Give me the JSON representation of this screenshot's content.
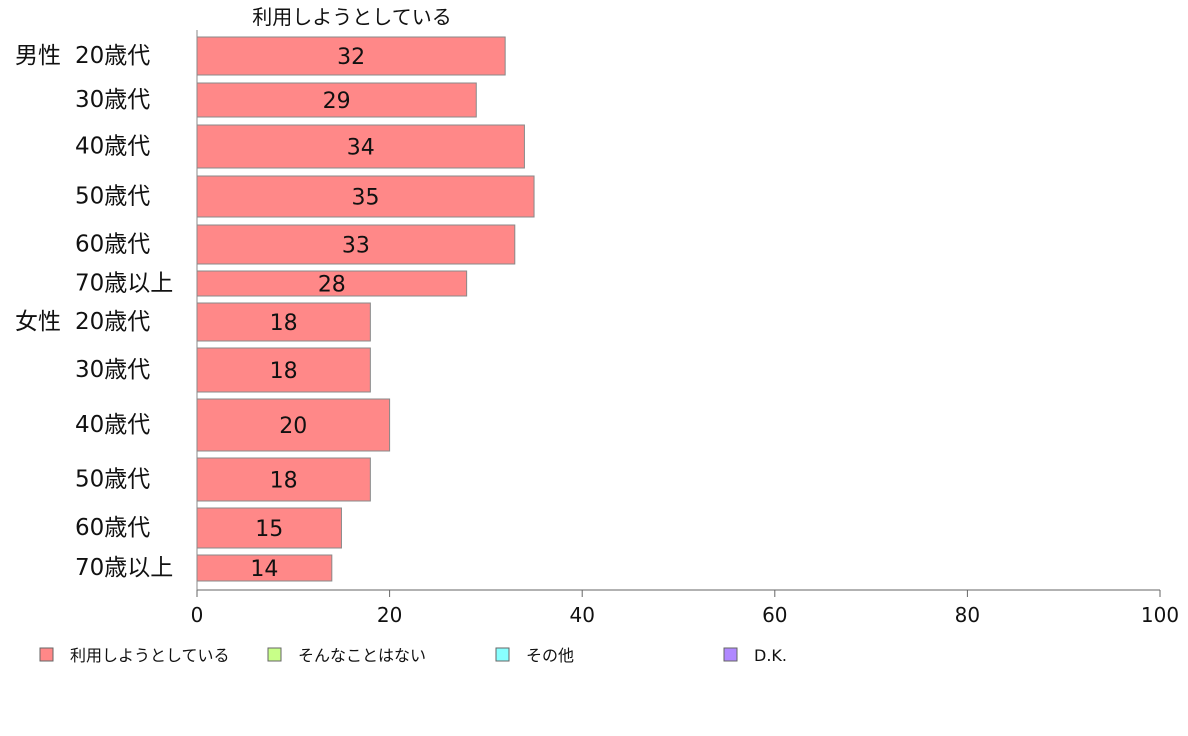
{
  "chart_data": {
    "type": "bar",
    "orientation": "horizontal",
    "stacked": true,
    "header_label": "利用しようとしている",
    "groups": [
      {
        "label": "男性",
        "categories": [
          "20歳代",
          "30歳代",
          "40歳代",
          "50歳代",
          "60歳代",
          "70歳以上"
        ]
      },
      {
        "label": "女性",
        "categories": [
          "20歳代",
          "30歳代",
          "40歳代",
          "50歳代",
          "60歳代",
          "70歳以上"
        ]
      }
    ],
    "series": [
      {
        "name": "利用しようとしている",
        "color": "#ff8888",
        "values": [
          32,
          29,
          34,
          35,
          33,
          28,
          18,
          18,
          20,
          18,
          15,
          14
        ]
      },
      {
        "name": "そんなことはない",
        "color": "#c8ff88"
      },
      {
        "name": "その他",
        "color": "#88ffff"
      },
      {
        "name": "D.K.",
        "color": "#b088ff"
      }
    ],
    "xlim": [
      0,
      100
    ],
    "xticks": [
      0,
      20,
      40,
      60,
      80,
      100
    ],
    "grid": false,
    "legend_position": "bottom"
  }
}
